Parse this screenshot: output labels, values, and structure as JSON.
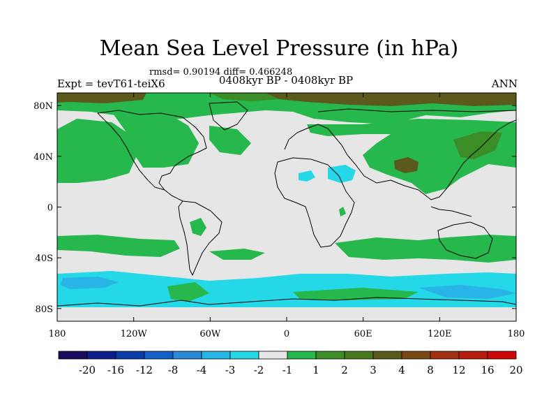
{
  "title": "Mean Sea Level Pressure (in hPa)",
  "stats_line": "rmsd= 0.90194 diff= 0.466248",
  "period_line": "0408kyr BP - 0408kyr BP",
  "expt_line": "Expt = tevT61-teiX6",
  "season": "ANN",
  "lon_ticks": [
    {
      "lon": -180,
      "label": "180"
    },
    {
      "lon": -120,
      "label": "120W"
    },
    {
      "lon": -60,
      "label": "60W"
    },
    {
      "lon": 0,
      "label": "0"
    },
    {
      "lon": 60,
      "label": "60E"
    },
    {
      "lon": 120,
      "label": "120E"
    },
    {
      "lon": 180,
      "label": "180"
    }
  ],
  "lat_ticks": [
    {
      "lat": 80,
      "label": "80N"
    },
    {
      "lat": 40,
      "label": "40N"
    },
    {
      "lat": 0,
      "label": "0"
    },
    {
      "lat": -40,
      "label": "40S"
    },
    {
      "lat": -80,
      "label": "80S"
    }
  ],
  "colorbar": {
    "colors": [
      "#1a0a5e",
      "#0d1e8c",
      "#0a3ca8",
      "#1460c8",
      "#2a8ad8",
      "#28b4e6",
      "#25d8e8",
      "#e6e6e6",
      "#26b84c",
      "#3c8c28",
      "#4a7820",
      "#5a5a1c",
      "#7a4a14",
      "#a03010",
      "#b81c0c",
      "#cc0808"
    ],
    "labels": [
      "-20",
      "-16",
      "-12",
      "-8",
      "-4",
      "-3",
      "-2",
      "-1",
      "1",
      "2",
      "3",
      "4",
      "8",
      "12",
      "16",
      "20"
    ]
  },
  "fields": {
    "background_color": "#e6e6e6",
    "colors": {
      "green": "#26b84c",
      "darkgreen": "#3c8c28",
      "olive": "#5a5a1c",
      "cyan": "#25d8e8",
      "lightblue": "#28b4e6",
      "blue": "#2a8ad8",
      "coast": "#000000"
    }
  }
}
